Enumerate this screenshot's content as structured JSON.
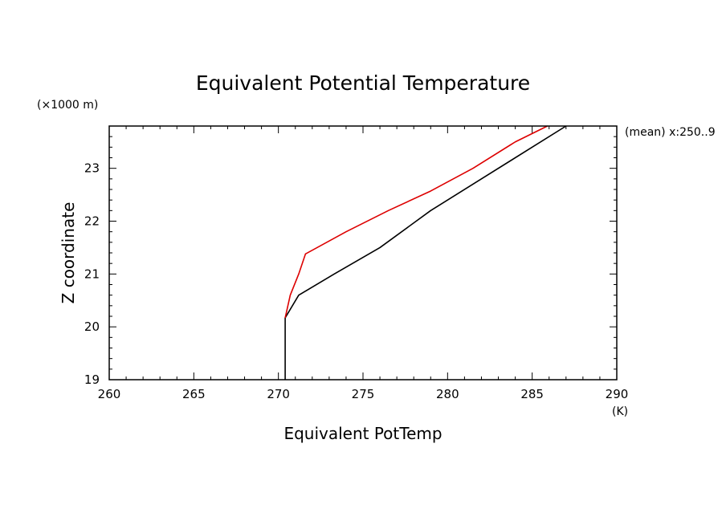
{
  "chart_data": {
    "type": "line",
    "title": "Equivalent Potential Temperature",
    "xlabel": "Equivalent PotTemp",
    "xunit": "(K)",
    "ylabel": "Z coordinate",
    "yunit": "(×1000 m)",
    "annotation": "(mean) x:250..9",
    "xlim": [
      260,
      290
    ],
    "ylim": [
      19,
      23.8
    ],
    "x_ticks": [
      260,
      265,
      270,
      275,
      280,
      285,
      290
    ],
    "y_ticks": [
      19,
      20,
      21,
      22,
      23
    ],
    "grid": false,
    "series": [
      {
        "color": "#000000",
        "points": [
          [
            270.4,
            19.0
          ],
          [
            270.4,
            20.0
          ],
          [
            270.4,
            20.17
          ],
          [
            271.2,
            20.6
          ],
          [
            273.3,
            21.0
          ],
          [
            276.0,
            21.5
          ],
          [
            279.0,
            22.2
          ],
          [
            282.0,
            22.8
          ],
          [
            285.0,
            23.4
          ],
          [
            287.0,
            23.8
          ]
        ]
      },
      {
        "color": "#dd0000",
        "points": [
          [
            270.4,
            20.17
          ],
          [
            270.7,
            20.6
          ],
          [
            271.2,
            21.0
          ],
          [
            271.6,
            21.38
          ],
          [
            274.0,
            21.8
          ],
          [
            276.5,
            22.2
          ],
          [
            279.0,
            22.57
          ],
          [
            281.5,
            23.0
          ],
          [
            284.0,
            23.5
          ],
          [
            285.9,
            23.8
          ]
        ]
      }
    ]
  }
}
